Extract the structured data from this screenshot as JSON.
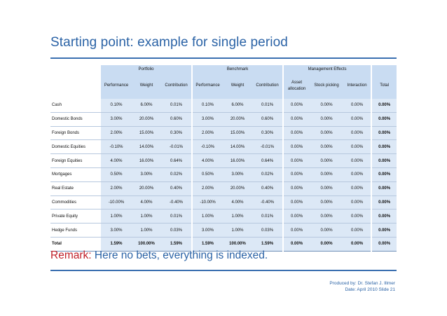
{
  "slide": {
    "title": "Starting point: example for single period",
    "remark_label": "Remark:",
    "remark_text": "Here no bets, everything is indexed.",
    "footer_line1": "Produced by: Dr. Stefan J. Illmer",
    "footer_line2": "Date: April 2010 Slide 21",
    "colors": {
      "accent": "#2b63a6",
      "remark_label": "#c0202a",
      "cell_fill": "#dce8f6",
      "header_fill": "#c9dcf2"
    }
  },
  "table": {
    "groups": {
      "portfolio": "Portfolio",
      "benchmark": "Benchmark",
      "effects": "Management Effects"
    },
    "columns": [
      "Performance",
      "Weight",
      "Contribution",
      "Performance",
      "Weight",
      "Contribution",
      "Asset allocation",
      "Stock picking",
      "Interaction",
      "Total"
    ],
    "rows": [
      {
        "label": "Cash",
        "values": [
          "0.10%",
          "6.00%",
          "0.01%",
          "0.10%",
          "6.00%",
          "0.01%",
          "0.00%",
          "0.00%",
          "0.00%",
          "0.00%"
        ]
      },
      {
        "label": "Domestic Bonds",
        "values": [
          "3.00%",
          "20.00%",
          "0.60%",
          "3.00%",
          "20.00%",
          "0.60%",
          "0.00%",
          "0.00%",
          "0.00%",
          "0.00%"
        ]
      },
      {
        "label": "Foreign Bonds",
        "values": [
          "2.00%",
          "15.00%",
          "0.30%",
          "2.00%",
          "15.00%",
          "0.30%",
          "0.00%",
          "0.00%",
          "0.00%",
          "0.00%"
        ]
      },
      {
        "label": "Domestic Equities",
        "values": [
          "-0.10%",
          "14.00%",
          "-0.01%",
          "-0.10%",
          "14.00%",
          "-0.01%",
          "0.00%",
          "0.00%",
          "0.00%",
          "0.00%"
        ]
      },
      {
        "label": "Foreign Equities",
        "values": [
          "4.00%",
          "16.00%",
          "0.64%",
          "4.00%",
          "16.00%",
          "0.64%",
          "0.00%",
          "0.00%",
          "0.00%",
          "0.00%"
        ]
      },
      {
        "label": "Mortgages",
        "values": [
          "0.50%",
          "3.00%",
          "0.02%",
          "0.50%",
          "3.00%",
          "0.02%",
          "0.00%",
          "0.00%",
          "0.00%",
          "0.00%"
        ]
      },
      {
        "label": "Real Estate",
        "values": [
          "2.00%",
          "20.00%",
          "0.40%",
          "2.00%",
          "20.00%",
          "0.40%",
          "0.00%",
          "0.00%",
          "0.00%",
          "0.00%"
        ]
      },
      {
        "label": "Commodities",
        "values": [
          "-10.00%",
          "4.00%",
          "-0.40%",
          "-10.00%",
          "4.00%",
          "-0.40%",
          "0.00%",
          "0.00%",
          "0.00%",
          "0.00%"
        ]
      },
      {
        "label": "Private Equity",
        "values": [
          "1.00%",
          "1.00%",
          "0.01%",
          "1.00%",
          "1.00%",
          "0.01%",
          "0.00%",
          "0.00%",
          "0.00%",
          "0.00%"
        ]
      },
      {
        "label": "Hedge Funds",
        "values": [
          "3.00%",
          "1.00%",
          "0.03%",
          "3.00%",
          "1.00%",
          "0.03%",
          "0.00%",
          "0.00%",
          "0.00%",
          "0.00%"
        ]
      }
    ],
    "total": {
      "label": "Total",
      "values": [
        "1.59%",
        "100.00%",
        "1.59%",
        "1.59%",
        "100.00%",
        "1.59%",
        "0.00%",
        "0.00%",
        "0.00%",
        "0.00%"
      ]
    }
  }
}
